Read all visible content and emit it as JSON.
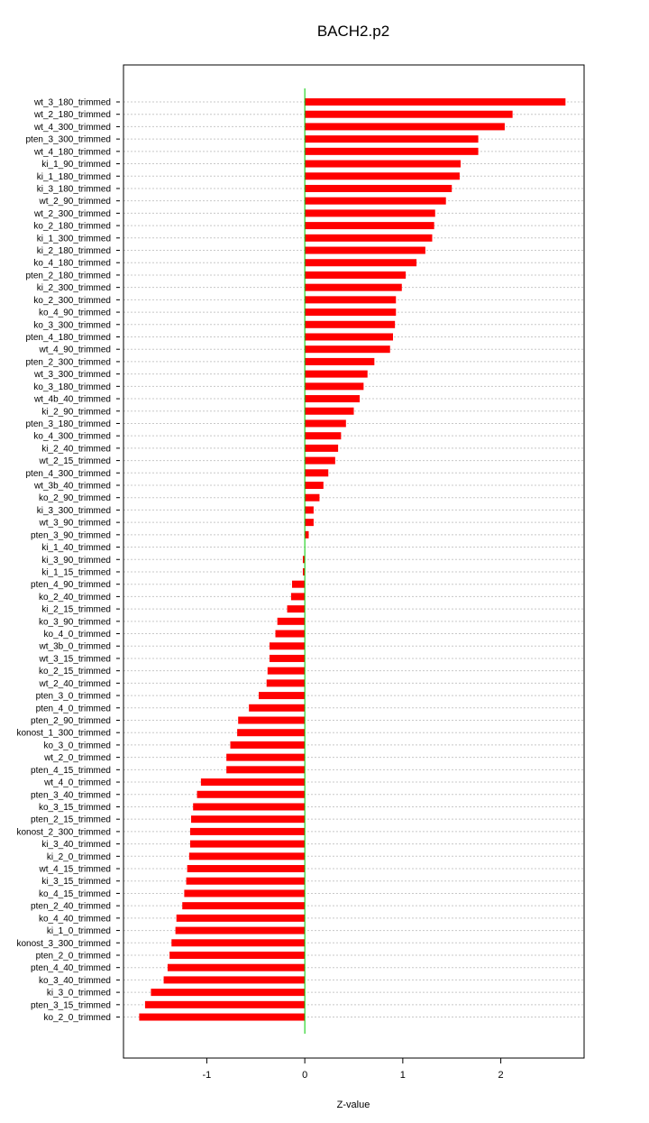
{
  "chart_data": {
    "type": "bar",
    "orientation": "horizontal",
    "title": "BACH2.p2",
    "xlabel": "Z-value",
    "xlim": [
      -1.85,
      2.85
    ],
    "xticks": [
      -1,
      0,
      1,
      2
    ],
    "grid": true,
    "bar_color": "#ff0000",
    "zero_line_color": "#00cc00",
    "categories": [
      "wt_3_180_trimmed",
      "wt_2_180_trimmed",
      "wt_4_300_trimmed",
      "pten_3_300_trimmed",
      "wt_4_180_trimmed",
      "ki_1_90_trimmed",
      "ki_1_180_trimmed",
      "ki_3_180_trimmed",
      "wt_2_90_trimmed",
      "wt_2_300_trimmed",
      "ko_2_180_trimmed",
      "ki_1_300_trimmed",
      "ki_2_180_trimmed",
      "ko_4_180_trimmed",
      "pten_2_180_trimmed",
      "ki_2_300_trimmed",
      "ko_2_300_trimmed",
      "ko_4_90_trimmed",
      "ko_3_300_trimmed",
      "pten_4_180_trimmed",
      "wt_4_90_trimmed",
      "pten_2_300_trimmed",
      "wt_3_300_trimmed",
      "ko_3_180_trimmed",
      "wt_4b_40_trimmed",
      "ki_2_90_trimmed",
      "pten_3_180_trimmed",
      "ko_4_300_trimmed",
      "ki_2_40_trimmed",
      "wt_2_15_trimmed",
      "pten_4_300_trimmed",
      "wt_3b_40_trimmed",
      "ko_2_90_trimmed",
      "ki_3_300_trimmed",
      "wt_3_90_trimmed",
      "pten_3_90_trimmed",
      "ki_1_40_trimmed",
      "ki_3_90_trimmed",
      "ki_1_15_trimmed",
      "pten_4_90_trimmed",
      "ko_2_40_trimmed",
      "ki_2_15_trimmed",
      "ko_3_90_trimmed",
      "ko_4_0_trimmed",
      "wt_3b_0_trimmed",
      "wt_3_15_trimmed",
      "ko_2_15_trimmed",
      "wt_2_40_trimmed",
      "pten_3_0_trimmed",
      "pten_4_0_trimmed",
      "pten_2_90_trimmed",
      "konost_1_300_trimmed",
      "ko_3_0_trimmed",
      "wt_2_0_trimmed",
      "pten_4_15_trimmed",
      "wt_4_0_trimmed",
      "pten_3_40_trimmed",
      "ko_3_15_trimmed",
      "pten_2_15_trimmed",
      "konost_2_300_trimmed",
      "ki_3_40_trimmed",
      "ki_2_0_trimmed",
      "wt_4_15_trimmed",
      "ki_3_15_trimmed",
      "ko_4_15_trimmed",
      "pten_2_40_trimmed",
      "ko_4_40_trimmed",
      "ki_1_0_trimmed",
      "konost_3_300_trimmed",
      "pten_2_0_trimmed",
      "pten_4_40_trimmed",
      "ko_3_40_trimmed",
      "ki_3_0_trimmed",
      "pten_3_15_trimmed",
      "ko_2_0_trimmed"
    ],
    "values": [
      2.66,
      2.12,
      2.04,
      1.77,
      1.77,
      1.59,
      1.58,
      1.5,
      1.44,
      1.33,
      1.32,
      1.3,
      1.23,
      1.14,
      1.03,
      0.99,
      0.93,
      0.93,
      0.92,
      0.9,
      0.87,
      0.71,
      0.64,
      0.6,
      0.56,
      0.5,
      0.42,
      0.37,
      0.34,
      0.31,
      0.24,
      0.19,
      0.15,
      0.09,
      0.09,
      0.04,
      0.0,
      -0.02,
      -0.02,
      -0.13,
      -0.14,
      -0.18,
      -0.28,
      -0.3,
      -0.36,
      -0.36,
      -0.38,
      -0.39,
      -0.47,
      -0.57,
      -0.68,
      -0.69,
      -0.76,
      -0.8,
      -0.8,
      -1.06,
      -1.1,
      -1.14,
      -1.16,
      -1.17,
      -1.17,
      -1.18,
      -1.2,
      -1.21,
      -1.23,
      -1.25,
      -1.31,
      -1.32,
      -1.36,
      -1.38,
      -1.4,
      -1.44,
      -1.57,
      -1.63,
      -1.69
    ]
  }
}
